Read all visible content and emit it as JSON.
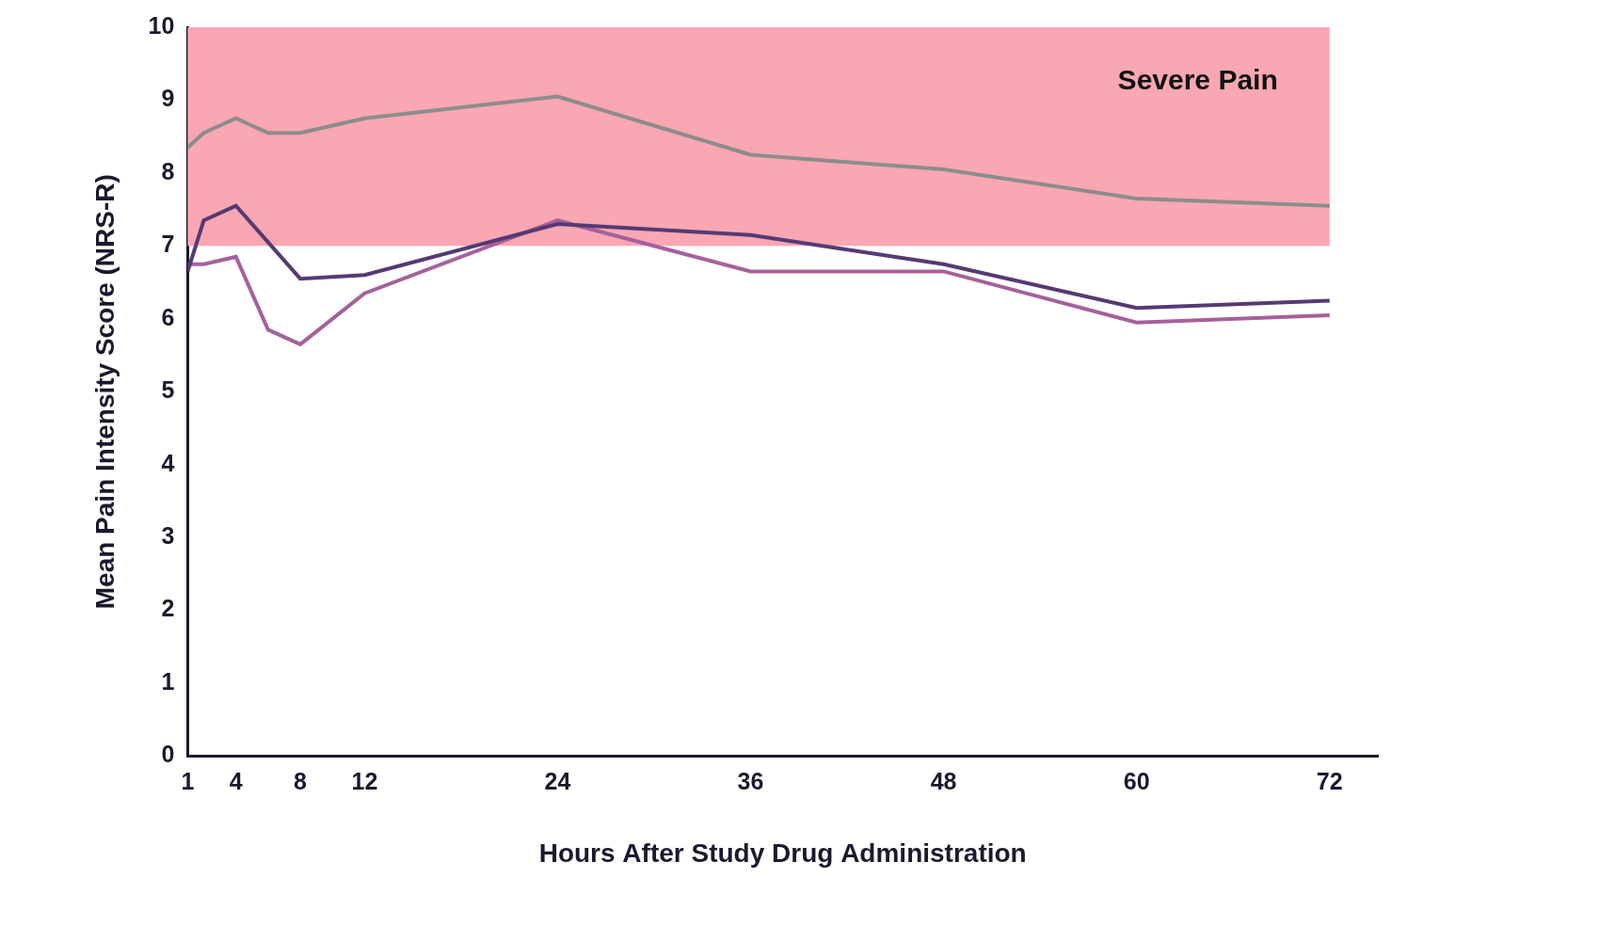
{
  "chart_data": {
    "type": "line",
    "x_label": "Hours After Study Drug Administration",
    "y_label": "Mean Pain Intensity Score (NRS-R)",
    "x": [
      1,
      2,
      4,
      6,
      8,
      12,
      24,
      36,
      48,
      60,
      72
    ],
    "series": [
      {
        "color": "#8c8c8c",
        "values": [
          8.35,
          8.55,
          8.75,
          8.55,
          8.55,
          8.75,
          9.05,
          8.25,
          8.05,
          7.65,
          7.55
        ]
      },
      {
        "color": "#553a73",
        "values": [
          6.65,
          7.35,
          7.55,
          7.05,
          6.55,
          6.6,
          7.3,
          7.15,
          6.75,
          6.15,
          6.25
        ]
      },
      {
        "color": "#a5619c",
        "values": [
          6.75,
          6.75,
          6.85,
          5.85,
          5.65,
          6.35,
          7.35,
          6.65,
          6.65,
          5.95,
          6.05
        ]
      }
    ],
    "xlim": [
      1,
      75
    ],
    "xticks": [
      1,
      4,
      8,
      12,
      24,
      36,
      48,
      60,
      72
    ],
    "ylim": [
      0,
      10
    ],
    "yticks": [
      0,
      1,
      2,
      3,
      4,
      5,
      6,
      7,
      8,
      9,
      10
    ],
    "grid": false,
    "annotations": [
      {
        "text": "Severe Pain",
        "x_range": [
          1,
          72
        ],
        "y_range": [
          7,
          10
        ],
        "color": "#f9a7b2"
      }
    ]
  }
}
